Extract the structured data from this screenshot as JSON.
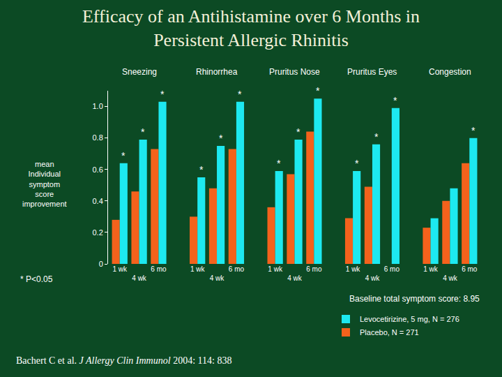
{
  "chart_data": {
    "type": "bar",
    "title": "Efficacy of an Antihistamine over 6 Months in\nPersistent Allergic Rhinitis",
    "groups": [
      "Sneezing",
      "Rhinorrhea",
      "Pruritus Nose",
      "Pruritus Eyes",
      "Congestion"
    ],
    "categories": [
      "1 wk",
      "4 wk",
      "6 mo",
      "1 wk",
      "4 wk",
      "6 mo",
      "1 wk",
      "4 wk",
      "6 mo",
      "1 wk",
      "4 wk",
      "6 mo",
      "1 wk",
      "4 wk",
      "6 mo"
    ],
    "series": [
      {
        "name": "Placebo, N = 271",
        "color": "#f4621c",
        "values": [
          0.28,
          0.46,
          0.73,
          0.3,
          0.48,
          0.73,
          0.36,
          0.57,
          0.84,
          0.29,
          0.49,
          null,
          0.23,
          0.4,
          0.64
        ]
      },
      {
        "name": "Levocetirizine, 5 mg, N = 276",
        "color": "#1de9f0",
        "values": [
          0.64,
          0.79,
          1.03,
          0.55,
          0.75,
          1.03,
          0.59,
          0.79,
          1.05,
          0.59,
          0.76,
          0.99,
          0.29,
          0.48,
          0.8
        ]
      }
    ],
    "ylabel": "mean Individual symptom score improvement",
    "ylim": [
      0,
      1.1
    ],
    "yticks": [
      0,
      0.2,
      0.4,
      0.6,
      0.8,
      {
        "value": 1,
        "label": "1.0"
      }
    ],
    "grid": false,
    "legend": "bottom right",
    "annotations": [
      {
        "text": "*",
        "series": 1,
        "index": 0
      },
      {
        "text": "*",
        "series": 1,
        "index": 1
      },
      {
        "text": "*",
        "series": 1,
        "index": 2
      },
      {
        "text": "*",
        "series": 1,
        "index": 3
      },
      {
        "text": "*",
        "series": 1,
        "index": 4
      },
      {
        "text": "*",
        "series": 1,
        "index": 5
      },
      {
        "text": "*",
        "series": 1,
        "index": 6
      },
      {
        "text": "*",
        "series": 1,
        "index": 7
      },
      {
        "text": "*",
        "series": 1,
        "index": 8
      },
      {
        "text": "*",
        "series": 1,
        "index": 9
      },
      {
        "text": "*",
        "series": 1,
        "index": 10
      },
      {
        "text": "*",
        "series": 1,
        "index": 11
      },
      {
        "text": "*",
        "series": 1,
        "index": 14
      }
    ],
    "footnote": "* P<0.05",
    "note": "Baseline total symptom score: 8.95",
    "citation": {
      "authors": "Bachert C et al.",
      "journal": "J Allergy Clin Immunol",
      "ref": "2004: 114: 838"
    }
  }
}
